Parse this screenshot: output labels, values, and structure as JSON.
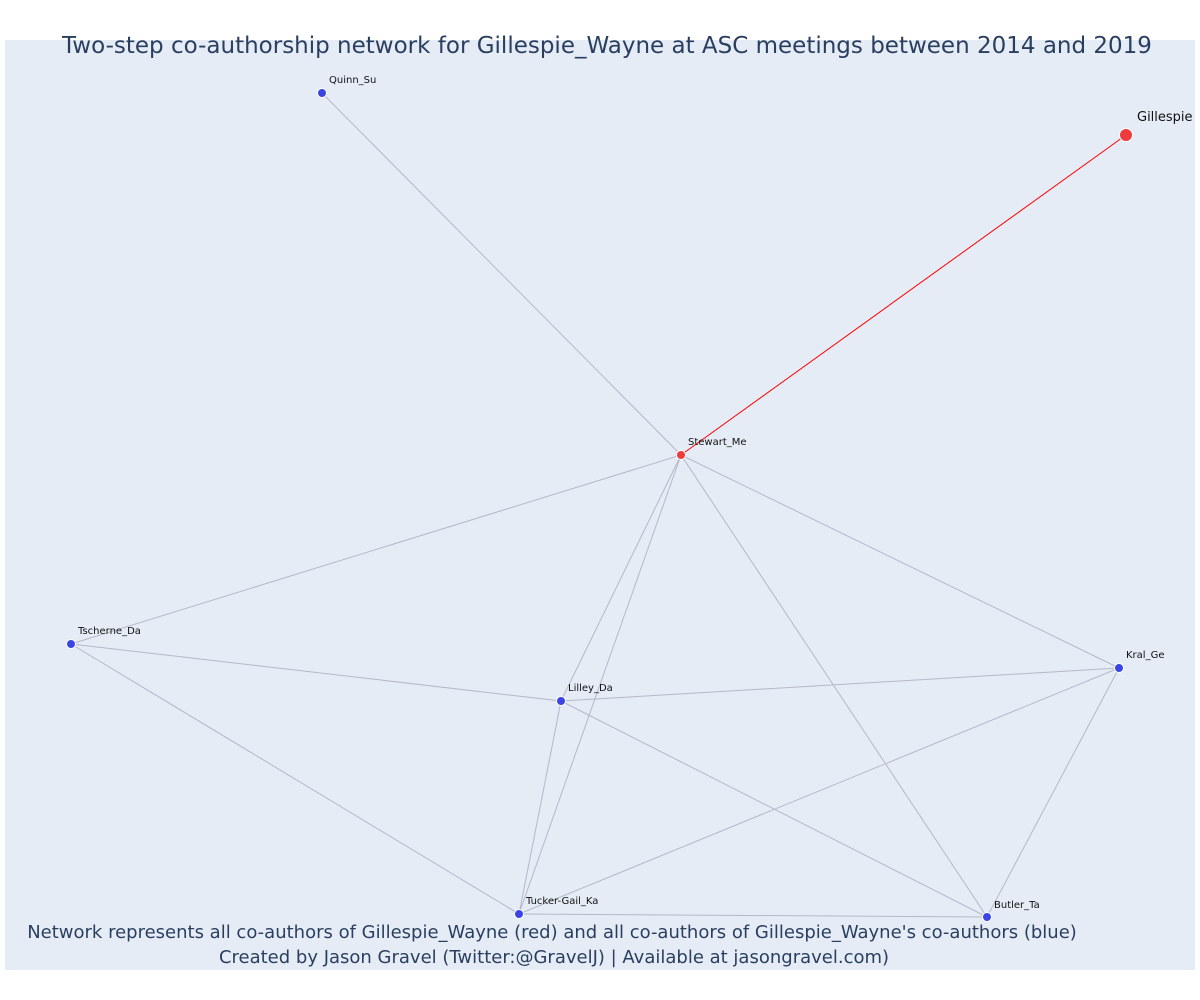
{
  "title": "Two-step co-authorship network for Gillespie_Wayne at ASC meetings between 2014 and 2019",
  "caption": {
    "line1": "Network represents all co-authors of Gillespie_Wayne (red) and all co-authors of Gillespie_Wayne's co-authors (blue)",
    "line2": "Created by Jason Gravel (Twitter:@GravelJ) | Available at jasongravel.com)"
  },
  "colors": {
    "background": "#e5ecf6",
    "focal_edge": "#ff0000",
    "edge": "#b6b8c8",
    "direct_coauthor": "#ef3b3b",
    "second_step": "#3b45e6",
    "text": "#2a3f5f"
  },
  "chart_data": {
    "type": "network",
    "nodes": [
      {
        "id": "Gillespie",
        "label": "Gillespie",
        "group": "focal"
      },
      {
        "id": "Stewart_Me",
        "label": "Stewart_Me",
        "group": "direct"
      },
      {
        "id": "Quinn_Su",
        "label": "Quinn_Su",
        "group": "second"
      },
      {
        "id": "Tscherne_Da",
        "label": "Tscherne_Da",
        "group": "second"
      },
      {
        "id": "Lilley_Da",
        "label": "Lilley_Da",
        "group": "second"
      },
      {
        "id": "Kral_Ge",
        "label": "Kral_Ge",
        "group": "second"
      },
      {
        "id": "Tucker-Gail_Ka",
        "label": "Tucker-Gail_Ka",
        "group": "second"
      },
      {
        "id": "Butler_Ta",
        "label": "Butler_Ta",
        "group": "second"
      }
    ],
    "edges": [
      {
        "source": "Gillespie",
        "target": "Stewart_Me",
        "kind": "focal"
      },
      {
        "source": "Stewart_Me",
        "target": "Quinn_Su",
        "kind": "other"
      },
      {
        "source": "Stewart_Me",
        "target": "Tscherne_Da",
        "kind": "other"
      },
      {
        "source": "Stewart_Me",
        "target": "Lilley_Da",
        "kind": "other"
      },
      {
        "source": "Stewart_Me",
        "target": "Tucker-Gail_Ka",
        "kind": "other"
      },
      {
        "source": "Stewart_Me",
        "target": "Butler_Ta",
        "kind": "other"
      },
      {
        "source": "Stewart_Me",
        "target": "Kral_Ge",
        "kind": "other"
      },
      {
        "source": "Tscherne_Da",
        "target": "Lilley_Da",
        "kind": "other"
      },
      {
        "source": "Tscherne_Da",
        "target": "Tucker-Gail_Ka",
        "kind": "other"
      },
      {
        "source": "Lilley_Da",
        "target": "Kral_Ge",
        "kind": "other"
      },
      {
        "source": "Lilley_Da",
        "target": "Tucker-Gail_Ka",
        "kind": "other"
      },
      {
        "source": "Lilley_Da",
        "target": "Butler_Ta",
        "kind": "other"
      },
      {
        "source": "Kral_Ge",
        "target": "Tucker-Gail_Ka",
        "kind": "other"
      },
      {
        "source": "Kral_Ge",
        "target": "Butler_Ta",
        "kind": "other"
      },
      {
        "source": "Tucker-Gail_Ka",
        "target": "Butler_Ta",
        "kind": "other"
      }
    ]
  }
}
